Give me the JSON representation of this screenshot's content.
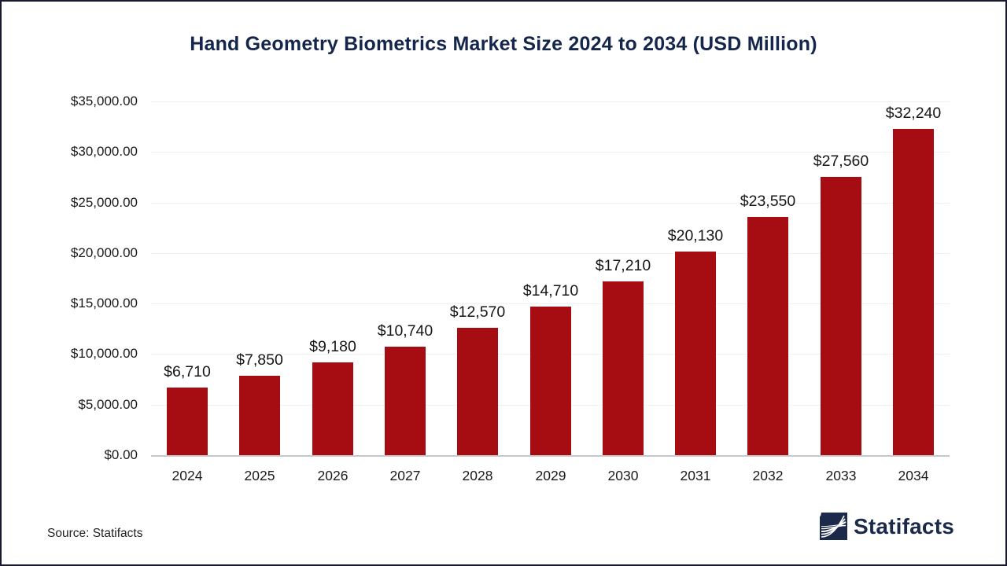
{
  "title": "Hand Geometry Biometrics Market Size 2024 to 2034 (USD Million)",
  "source": {
    "label": "Source: Statifacts"
  },
  "logo": {
    "text": "Statifacts",
    "icon": "waves-icon"
  },
  "colors": {
    "bar": "#a50d12",
    "title": "#14264c",
    "grid": "#f1f1f1",
    "axis": "#c5c8cc",
    "logo_navy": "#1b2a4a",
    "border": "#15192b"
  },
  "chart_data": {
    "type": "bar",
    "title": "Hand Geometry Biometrics Market Size 2024 to 2034 (USD Million)",
    "categories": [
      "2024",
      "2025",
      "2026",
      "2027",
      "2028",
      "2029",
      "2030",
      "2031",
      "2032",
      "2033",
      "2034"
    ],
    "values": [
      6710,
      7850,
      9180,
      10740,
      12570,
      14710,
      17210,
      20130,
      23550,
      27560,
      32240
    ],
    "bar_labels": [
      "$6,710",
      "$7,850",
      "$9,180",
      "$10,740",
      "$12,570",
      "$14,710",
      "$17,210",
      "$20,130",
      "$23,550",
      "$27,560",
      "$32,240"
    ],
    "xlabel": "",
    "ylabel": "",
    "ylim": [
      0,
      35000
    ],
    "ytick_step": 5000,
    "ytick_labels": [
      "$0.00",
      "$5,000.00",
      "$10,000.00",
      "$15,000.00",
      "$20,000.00",
      "$25,000.00",
      "$30,000.00",
      "$35,000.00"
    ],
    "grid": true,
    "legend": false
  }
}
